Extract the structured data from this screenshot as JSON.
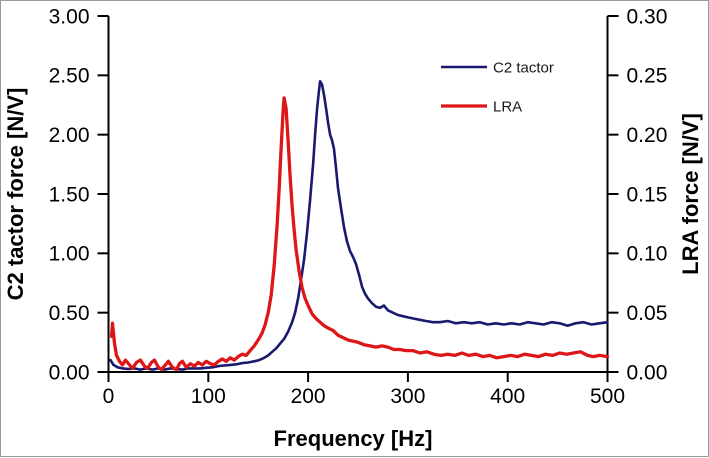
{
  "chart_data": {
    "type": "line",
    "title": "",
    "xlabel": "Frequency [Hz]",
    "ylabel_left": "C2 tactor force [N/V]",
    "ylabel_right": "LRA force [N/V]",
    "xlim": [
      0,
      500
    ],
    "ylim_left": [
      0,
      3
    ],
    "ylim_right": [
      0,
      0.3
    ],
    "x_ticks": [
      "0",
      "100",
      "200",
      "300",
      "400",
      "500"
    ],
    "y_ticks_left": [
      "0.00",
      "0.50",
      "1.00",
      "1.50",
      "2.00",
      "2.50",
      "3.00"
    ],
    "y_ticks_right": [
      "0.00",
      "0.05",
      "0.10",
      "0.15",
      "0.20",
      "0.25",
      "0.30"
    ],
    "grid": false,
    "axis_color": "#000000",
    "background": "#ffffff",
    "legend": {
      "position": "upper-right-inside",
      "entries": [
        "C2 tactor",
        "LRA"
      ]
    },
    "series": [
      {
        "name": "C2 tactor",
        "axis": "left",
        "color": "#191970",
        "line_width": 2.6,
        "peak": {
          "x": 212,
          "y": 2.45
        },
        "points": [
          [
            2,
            0.1
          ],
          [
            5,
            0.06
          ],
          [
            9,
            0.04
          ],
          [
            14,
            0.03
          ],
          [
            20,
            0.025
          ],
          [
            26,
            0.03
          ],
          [
            32,
            0.02
          ],
          [
            38,
            0.03
          ],
          [
            44,
            0.02
          ],
          [
            50,
            0.03
          ],
          [
            56,
            0.02
          ],
          [
            62,
            0.03
          ],
          [
            68,
            0.025
          ],
          [
            74,
            0.02
          ],
          [
            80,
            0.03
          ],
          [
            86,
            0.03
          ],
          [
            92,
            0.03
          ],
          [
            98,
            0.035
          ],
          [
            104,
            0.04
          ],
          [
            110,
            0.05
          ],
          [
            116,
            0.055
          ],
          [
            122,
            0.06
          ],
          [
            128,
            0.065
          ],
          [
            134,
            0.075
          ],
          [
            140,
            0.08
          ],
          [
            146,
            0.09
          ],
          [
            151,
            0.1
          ],
          [
            156,
            0.12
          ],
          [
            160,
            0.14
          ],
          [
            164,
            0.17
          ],
          [
            168,
            0.2
          ],
          [
            172,
            0.24
          ],
          [
            176,
            0.28
          ],
          [
            180,
            0.34
          ],
          [
            184,
            0.42
          ],
          [
            187,
            0.5
          ],
          [
            190,
            0.62
          ],
          [
            193,
            0.78
          ],
          [
            196,
            0.95
          ],
          [
            199,
            1.18
          ],
          [
            202,
            1.45
          ],
          [
            205,
            1.75
          ],
          [
            207,
            2.0
          ],
          [
            209,
            2.22
          ],
          [
            211,
            2.38
          ],
          [
            212,
            2.45
          ],
          [
            214,
            2.42
          ],
          [
            216,
            2.33
          ],
          [
            218,
            2.22
          ],
          [
            220,
            2.1
          ],
          [
            222,
            2.0
          ],
          [
            224,
            1.95
          ],
          [
            226,
            1.88
          ],
          [
            228,
            1.72
          ],
          [
            230,
            1.55
          ],
          [
            233,
            1.38
          ],
          [
            236,
            1.22
          ],
          [
            239,
            1.1
          ],
          [
            242,
            1.02
          ],
          [
            245,
            0.97
          ],
          [
            248,
            0.91
          ],
          [
            251,
            0.82
          ],
          [
            254,
            0.72
          ],
          [
            257,
            0.66
          ],
          [
            260,
            0.62
          ],
          [
            264,
            0.58
          ],
          [
            268,
            0.55
          ],
          [
            272,
            0.54
          ],
          [
            276,
            0.56
          ],
          [
            280,
            0.52
          ],
          [
            285,
            0.5
          ],
          [
            290,
            0.48
          ],
          [
            295,
            0.47
          ],
          [
            300,
            0.46
          ],
          [
            306,
            0.45
          ],
          [
            312,
            0.44
          ],
          [
            318,
            0.43
          ],
          [
            325,
            0.42
          ],
          [
            332,
            0.42
          ],
          [
            340,
            0.43
          ],
          [
            348,
            0.41
          ],
          [
            356,
            0.42
          ],
          [
            364,
            0.41
          ],
          [
            372,
            0.42
          ],
          [
            380,
            0.4
          ],
          [
            388,
            0.41
          ],
          [
            396,
            0.4
          ],
          [
            404,
            0.41
          ],
          [
            412,
            0.4
          ],
          [
            420,
            0.42
          ],
          [
            428,
            0.41
          ],
          [
            436,
            0.4
          ],
          [
            444,
            0.42
          ],
          [
            452,
            0.41
          ],
          [
            460,
            0.39
          ],
          [
            468,
            0.41
          ],
          [
            476,
            0.42
          ],
          [
            484,
            0.4
          ],
          [
            492,
            0.41
          ],
          [
            500,
            0.42
          ]
        ]
      },
      {
        "name": "LRA",
        "axis": "right",
        "color": "#dd1717",
        "line_width": 3.3,
        "peak": {
          "x": 176,
          "y": 0.231
        },
        "points": [
          [
            3,
            0.03
          ],
          [
            4,
            0.041
          ],
          [
            6,
            0.024
          ],
          [
            8,
            0.014
          ],
          [
            11,
            0.009
          ],
          [
            14,
            0.006
          ],
          [
            17,
            0.01
          ],
          [
            20,
            0.007
          ],
          [
            24,
            0.003
          ],
          [
            28,
            0.008
          ],
          [
            32,
            0.01
          ],
          [
            36,
            0.005
          ],
          [
            39,
            0.003
          ],
          [
            43,
            0.008
          ],
          [
            46,
            0.01
          ],
          [
            50,
            0.004
          ],
          [
            53,
            0.002
          ],
          [
            57,
            0.006
          ],
          [
            60,
            0.009
          ],
          [
            64,
            0.004
          ],
          [
            68,
            0.002
          ],
          [
            71,
            0.007
          ],
          [
            74,
            0.009
          ],
          [
            78,
            0.004
          ],
          [
            82,
            0.007
          ],
          [
            86,
            0.005
          ],
          [
            90,
            0.008
          ],
          [
            94,
            0.006
          ],
          [
            98,
            0.009
          ],
          [
            102,
            0.007
          ],
          [
            106,
            0.006
          ],
          [
            110,
            0.009
          ],
          [
            114,
            0.011
          ],
          [
            118,
            0.009
          ],
          [
            122,
            0.012
          ],
          [
            126,
            0.01
          ],
          [
            130,
            0.013
          ],
          [
            134,
            0.015
          ],
          [
            138,
            0.014
          ],
          [
            142,
            0.018
          ],
          [
            146,
            0.022
          ],
          [
            150,
            0.027
          ],
          [
            154,
            0.033
          ],
          [
            157,
            0.04
          ],
          [
            160,
            0.05
          ],
          [
            163,
            0.065
          ],
          [
            166,
            0.09
          ],
          [
            169,
            0.125
          ],
          [
            171,
            0.155
          ],
          [
            173,
            0.19
          ],
          [
            175,
            0.22
          ],
          [
            176,
            0.231
          ],
          [
            178,
            0.222
          ],
          [
            180,
            0.195
          ],
          [
            182,
            0.165
          ],
          [
            184,
            0.14
          ],
          [
            186,
            0.12
          ],
          [
            188,
            0.103
          ],
          [
            191,
            0.085
          ],
          [
            194,
            0.071
          ],
          [
            197,
            0.062
          ],
          [
            200,
            0.056
          ],
          [
            204,
            0.049
          ],
          [
            208,
            0.045
          ],
          [
            212,
            0.042
          ],
          [
            216,
            0.039
          ],
          [
            220,
            0.037
          ],
          [
            225,
            0.035
          ],
          [
            230,
            0.031
          ],
          [
            235,
            0.029
          ],
          [
            240,
            0.027
          ],
          [
            245,
            0.026
          ],
          [
            250,
            0.025
          ],
          [
            256,
            0.023
          ],
          [
            262,
            0.022
          ],
          [
            268,
            0.021
          ],
          [
            274,
            0.022
          ],
          [
            280,
            0.021
          ],
          [
            286,
            0.019
          ],
          [
            292,
            0.019
          ],
          [
            298,
            0.018
          ],
          [
            305,
            0.018
          ],
          [
            312,
            0.016
          ],
          [
            319,
            0.017
          ],
          [
            326,
            0.015
          ],
          [
            333,
            0.014
          ],
          [
            340,
            0.015
          ],
          [
            347,
            0.014
          ],
          [
            354,
            0.016
          ],
          [
            361,
            0.014
          ],
          [
            368,
            0.015
          ],
          [
            375,
            0.013
          ],
          [
            382,
            0.014
          ],
          [
            389,
            0.012
          ],
          [
            396,
            0.013
          ],
          [
            403,
            0.014
          ],
          [
            410,
            0.013
          ],
          [
            417,
            0.015
          ],
          [
            424,
            0.014
          ],
          [
            431,
            0.013
          ],
          [
            438,
            0.015
          ],
          [
            445,
            0.014
          ],
          [
            452,
            0.016
          ],
          [
            459,
            0.015
          ],
          [
            466,
            0.016
          ],
          [
            473,
            0.017
          ],
          [
            480,
            0.014
          ],
          [
            486,
            0.013
          ],
          [
            492,
            0.014
          ],
          [
            500,
            0.013
          ]
        ]
      }
    ]
  }
}
